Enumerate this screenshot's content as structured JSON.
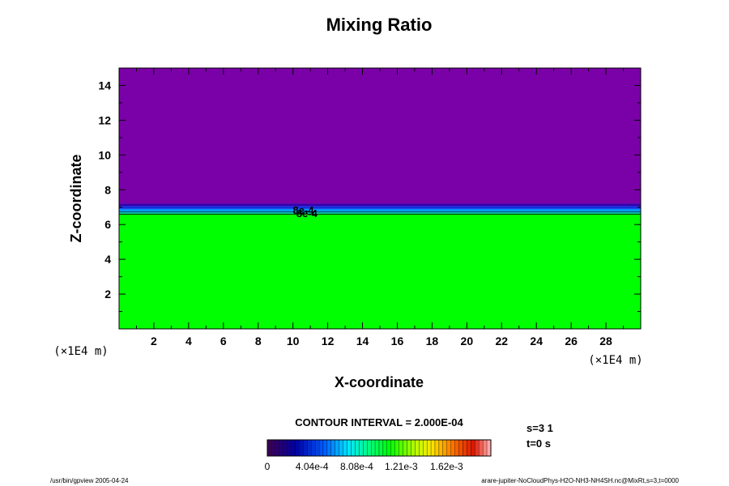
{
  "chart_data": {
    "type": "heatmap",
    "title": "Mixing Ratio",
    "xlabel": "X-coordinate",
    "ylabel": "Z-coordinate",
    "x_unit": "(×1E4 m)",
    "y_unit": "(×1E4 m)",
    "xlim": [
      0,
      30
    ],
    "ylim": [
      0,
      15
    ],
    "xticks": [
      2,
      4,
      6,
      8,
      10,
      12,
      14,
      16,
      18,
      20,
      22,
      24,
      26,
      28
    ],
    "yticks": [
      2,
      4,
      6,
      8,
      10,
      12,
      14
    ],
    "bands": [
      {
        "z0": 0,
        "z1": 6.6,
        "value": 0.00089,
        "color": "#00ff00"
      },
      {
        "z0": 6.6,
        "z1": 6.68,
        "value": 0.0006,
        "color": "#00e0a0"
      },
      {
        "z0": 6.68,
        "z1": 6.78,
        "value": 0.00045,
        "color": "#00c8ff"
      },
      {
        "z0": 6.78,
        "z1": 6.9,
        "value": 0.0003,
        "color": "#0090ff"
      },
      {
        "z0": 6.9,
        "z1": 7.05,
        "value": 0.00015,
        "color": "#1030e0"
      },
      {
        "z0": 7.05,
        "z1": 7.2,
        "value": 5e-05,
        "color": "#3000b0"
      },
      {
        "z0": 7.2,
        "z1": 15,
        "value": 0,
        "color": "#7a00a8"
      }
    ],
    "contour_labels": [
      {
        "text": "8e-4",
        "x": 10.6,
        "z": 6.85
      },
      {
        "text": "8e-4",
        "x": 10.8,
        "z": 6.65
      }
    ],
    "contour_interval_text": "CONTOUR INTERVAL = 2.000E-04",
    "colorbar": {
      "ticks": [
        "0",
        "4.04e-4",
        "8.08e-4",
        "1.21e-3",
        "1.62e-3"
      ],
      "tick_values": [
        0,
        0.000404,
        0.000808,
        0.00121,
        0.00162
      ],
      "vmin": 0,
      "vmax": 0.00202,
      "n_colors": 56
    }
  },
  "info": {
    "s": "s=3 1",
    "t": "t=0 s"
  },
  "footer": {
    "left": "/usr/bin/gpview 2005-04-24",
    "right": "arare-jupiter-NoCloudPhys-H2O-NH3-NH4SH.nc@MixRt,s=3,t=0000"
  }
}
